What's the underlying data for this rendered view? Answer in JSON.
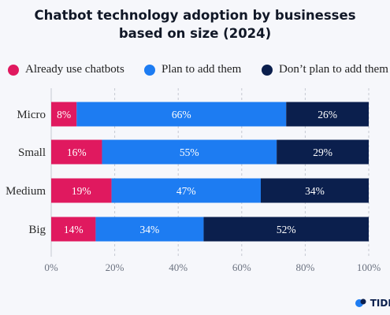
{
  "title_lines": [
    "Chatbot technology adoption by businesses",
    "based on size (2024)"
  ],
  "brand": "TIDIO",
  "colors": {
    "already": "#e0195f",
    "plan": "#1d7cf2",
    "dont": "#0b1f4d",
    "grid": "#c5c9d2",
    "text": "#2b2b2b"
  },
  "chart_data": {
    "type": "bar",
    "orientation": "horizontal",
    "stacked": true,
    "categories": [
      "Micro",
      "Small",
      "Medium",
      "Big"
    ],
    "series": [
      {
        "name": "Already use chatbots",
        "values": [
          8,
          16,
          19,
          14
        ]
      },
      {
        "name": "Plan to add them",
        "values": [
          66,
          55,
          47,
          34
        ]
      },
      {
        "name": "Don’t plan to add them",
        "values": [
          26,
          29,
          34,
          52
        ]
      }
    ],
    "data_labels": [
      [
        "8%",
        "66%",
        "26%"
      ],
      [
        "16%",
        "55%",
        "29%"
      ],
      [
        "19%",
        "47%",
        "34%"
      ],
      [
        "14%",
        "34%",
        "52%"
      ]
    ],
    "xlim": [
      0,
      100
    ],
    "xticks": [
      0,
      20,
      40,
      60,
      80,
      100
    ],
    "xtick_labels": [
      "0%",
      "20%",
      "40%",
      "60%",
      "80%",
      "100%"
    ],
    "grid": true,
    "legend_position": "top"
  }
}
